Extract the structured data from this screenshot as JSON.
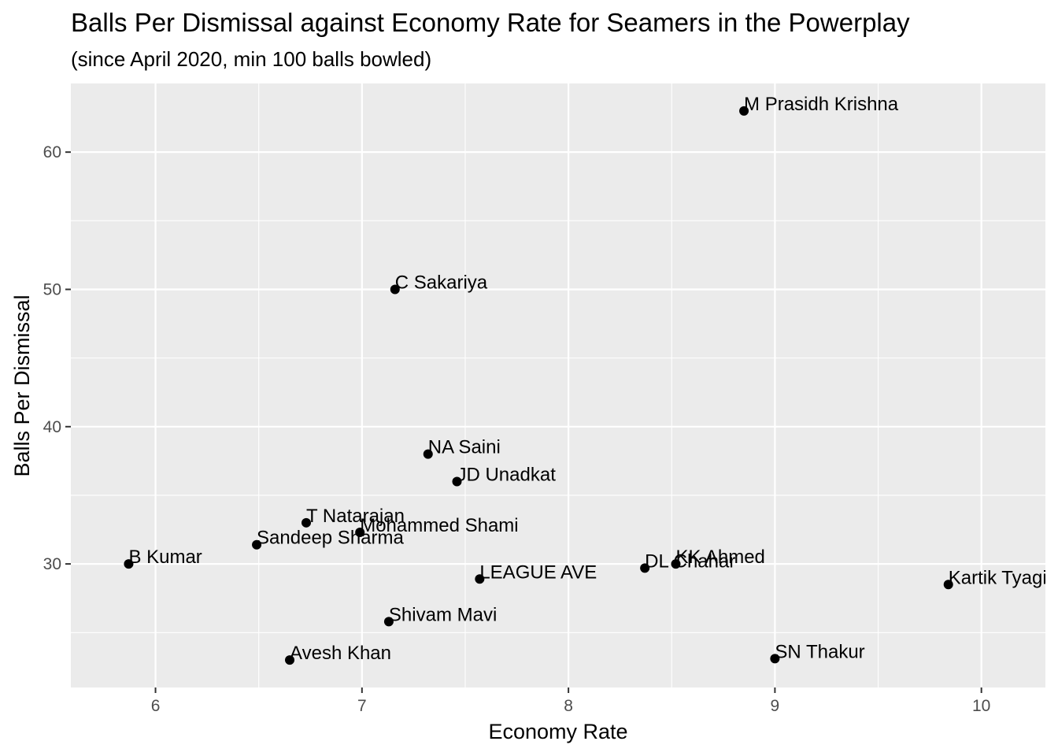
{
  "chart_data": {
    "type": "scatter",
    "title": "Balls Per Dismissal against Economy Rate for Seamers in the Powerplay",
    "subtitle": "(since April 2020, min 100 balls bowled)",
    "xlabel": "Economy Rate",
    "ylabel": "Balls Per Dismissal",
    "xlim": [
      5.59,
      10.31
    ],
    "ylim": [
      21.0,
      65.0
    ],
    "x_ticks": [
      6,
      7,
      8,
      9,
      10
    ],
    "y_ticks": [
      30,
      40,
      50,
      60
    ],
    "grid": true,
    "legend": "none",
    "colors": {
      "panel_background": "#ebebeb",
      "grid": "#ffffff",
      "point": "#000000",
      "tick_text": "#4d4d4d"
    },
    "points": [
      {
        "label": "M Prasidh Krishna",
        "x": 8.85,
        "y": 63.0
      },
      {
        "label": "C Sakariya",
        "x": 7.16,
        "y": 50.0
      },
      {
        "label": "NA Saini",
        "x": 7.32,
        "y": 38.0
      },
      {
        "label": "JD Unadkat",
        "x": 7.46,
        "y": 36.0
      },
      {
        "label": "T Natarajan",
        "x": 6.73,
        "y": 33.0
      },
      {
        "label": "Mohammed Shami",
        "x": 6.99,
        "y": 32.3
      },
      {
        "label": "Sandeep Sharma",
        "x": 6.49,
        "y": 31.4
      },
      {
        "label": "B Kumar",
        "x": 5.87,
        "y": 30.0
      },
      {
        "label": "KK Ahmed",
        "x": 8.52,
        "y": 30.0
      },
      {
        "label": "DL Chahar",
        "x": 8.37,
        "y": 29.7
      },
      {
        "label": "LEAGUE AVE",
        "x": 7.57,
        "y": 28.9
      },
      {
        "label": "Kartik Tyagi",
        "x": 9.84,
        "y": 28.5
      },
      {
        "label": "Shivam Mavi",
        "x": 7.13,
        "y": 25.8
      },
      {
        "label": "SN Thakur",
        "x": 9.0,
        "y": 23.1
      },
      {
        "label": "Avesh Khan",
        "x": 6.65,
        "y": 23.0
      }
    ]
  }
}
